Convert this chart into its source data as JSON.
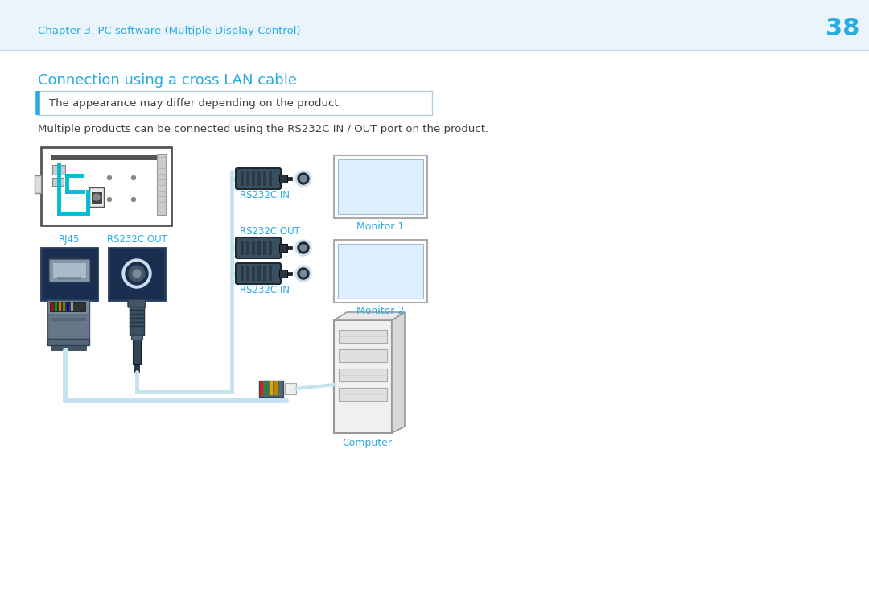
{
  "bg_color": "#eaf4fb",
  "white_bg": "#ffffff",
  "blue_color": "#29abe2",
  "text_color": "#404040",
  "light_blue_line": "#b8dcea",
  "cable_line": "#c5e3ee",
  "header_text": "Chapter 3. PC software (Multiple Display Control)",
  "page_number": "38",
  "title": "Connection using a cross LAN cable",
  "note": "The appearance may differ depending on the product.",
  "body_text": "Multiple products can be connected using the RS232C IN / OUT port on the product.",
  "label_rj45": "RJ45",
  "label_rs232c_out_port": "RS232C OUT",
  "label_rs232c_in1": "RS232C IN",
  "label_rs232c_out1": "RS232C OUT",
  "label_rs232c_in2": "RS232C IN",
  "label_monitor1": "Monitor 1",
  "label_monitor2": "Monitor 2",
  "label_computer": "Computer",
  "connector_dark": "#4a5e6a",
  "connector_mid": "#5a7080",
  "connector_light": "#7a9aaa",
  "port_box_bg": "#1a3050",
  "port_box_border": "#2a4a70"
}
